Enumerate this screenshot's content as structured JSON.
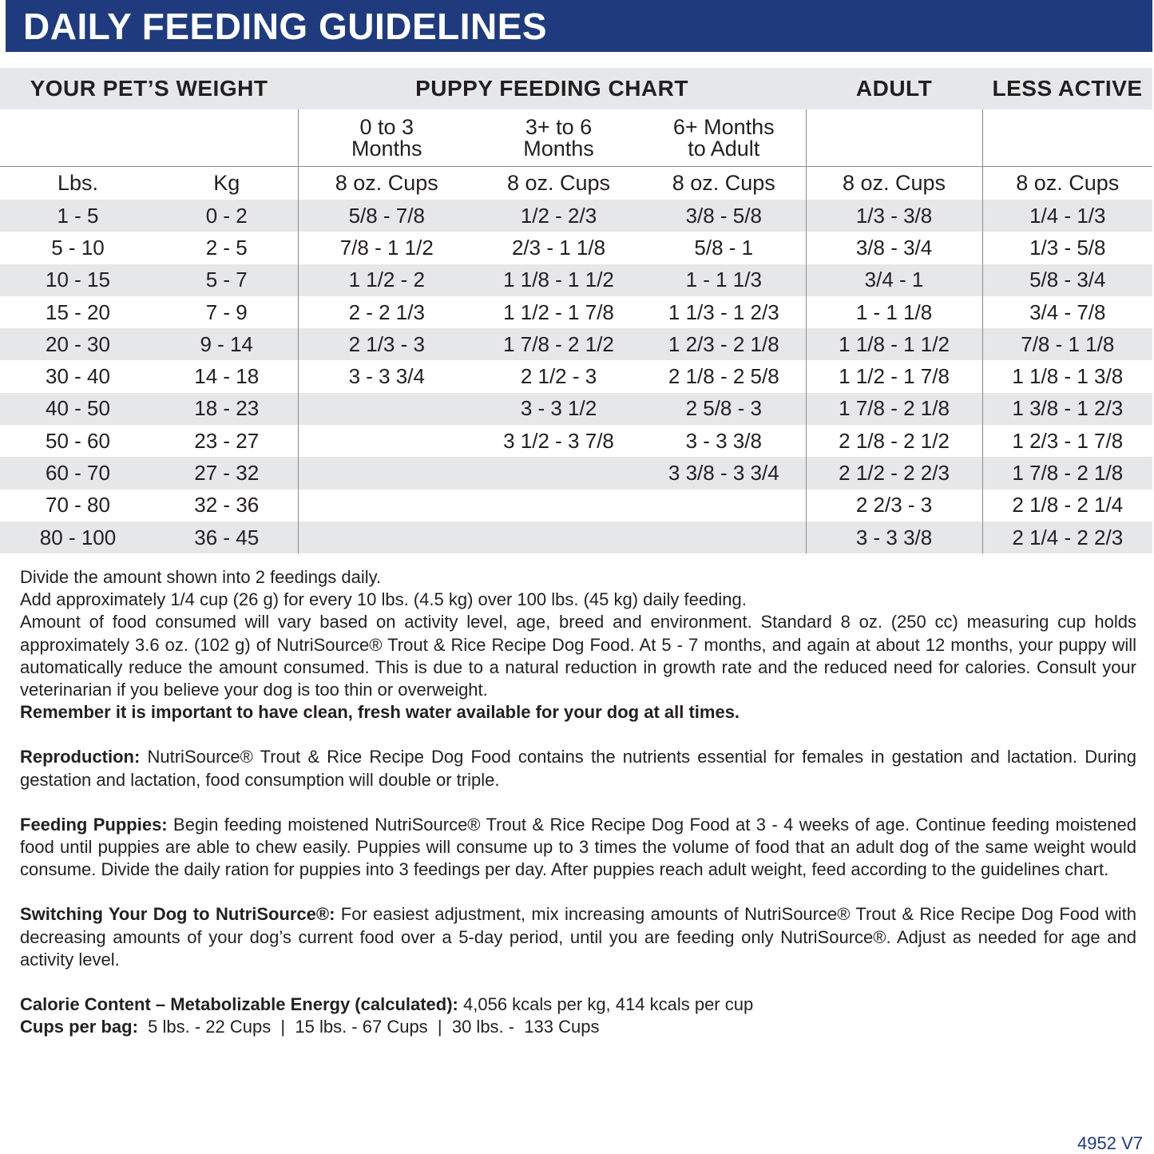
{
  "title": "DAILY FEEDING GUIDELINES",
  "table": {
    "group_headers": [
      "YOUR PET’S WEIGHT",
      "PUPPY FEEDING CHART",
      "ADULT",
      "LESS ACTIVE"
    ],
    "age_headers": [
      "0 to 3 Months",
      "3+ to 6 Months",
      "6+ Months to Adult"
    ],
    "age_header_lines": [
      [
        "0 to 3",
        "Months"
      ],
      [
        "3+ to 6",
        "Months"
      ],
      [
        "6+ Months",
        "to Adult"
      ]
    ],
    "unit_headers": [
      "Lbs.",
      "Kg",
      "8 oz. Cups",
      "8 oz. Cups",
      "8 oz. Cups",
      "8 oz. Cups",
      "8 oz. Cups"
    ],
    "rows": [
      [
        "1 - 5",
        "0 - 2",
        "5/8 - 7/8",
        "1/2 - 2/3",
        "3/8 - 5/8",
        "1/3 - 3/8",
        "1/4 - 1/3"
      ],
      [
        "5 - 10",
        "2 - 5",
        "7/8 - 1 1/2",
        "2/3 - 1 1/8",
        "5/8 - 1",
        "3/8 - 3/4",
        "1/3 - 5/8"
      ],
      [
        "10 - 15",
        "5 - 7",
        "1 1/2 - 2",
        "1 1/8 - 1 1/2",
        "1 - 1 1/3",
        "3/4 - 1",
        "5/8 - 3/4"
      ],
      [
        "15 - 20",
        "7 - 9",
        "2 - 2 1/3",
        "1 1/2 - 1 7/8",
        "1 1/3 - 1 2/3",
        "1 - 1 1/8",
        "3/4 - 7/8"
      ],
      [
        "20 - 30",
        "9 - 14",
        "2 1/3 - 3",
        "1 7/8 - 2 1/2",
        "1 2/3 - 2 1/8",
        "1 1/8 - 1 1/2",
        "7/8 - 1 1/8"
      ],
      [
        "30 - 40",
        "14 - 18",
        "3 - 3 3/4",
        "2 1/2 - 3",
        "2 1/8 - 2 5/8",
        "1 1/2 - 1 7/8",
        "1 1/8 - 1 3/8"
      ],
      [
        "40 - 50",
        "18 - 23",
        "",
        "3 - 3 1/2",
        "2 5/8 - 3",
        "1 7/8 - 2 1/8",
        "1 3/8 - 1 2/3"
      ],
      [
        "50 - 60",
        "23 - 27",
        "",
        "3 1/2 - 3 7/8",
        "3 - 3 3/8",
        "2 1/8 - 2 1/2",
        "1 2/3 - 1 7/8"
      ],
      [
        "60 - 70",
        "27 - 32",
        "",
        "",
        "3 3/8 - 3 3/4",
        "2 1/2 - 2 2/3",
        "1 7/8 - 2 1/8"
      ],
      [
        "70 - 80",
        "32 - 36",
        "",
        "",
        "",
        "2 2/3 - 3",
        "2 1/8 - 2 1/4"
      ],
      [
        "80 - 100",
        "36 - 45",
        "",
        "",
        "",
        "3 - 3 3/8",
        "2 1/4 - 2 2/3"
      ]
    ]
  },
  "notes": {
    "line1": "Divide the amount shown into 2 feedings daily.",
    "line2": "Add approximately 1/4 cup (26 g) for every 10 lbs. (4.5 kg) over 100 lbs. (45 kg) daily feeding.",
    "line3": "Amount of food consumed will vary based on activity level, age, breed and environment. Standard 8 oz. (250 cc) measuring cup holds approximately 3.6 oz. (102 g)  of NutriSource® Trout & Rice Recipe Dog Food. At 5 - 7 months, and again at about 12 months, your puppy will automatically reduce the amount consumed. This is due to a natural reduction in growth rate and the reduced need for calories. Consult your veterinarian if you believe your dog is too thin or overweight.",
    "water": "Remember it is important to have clean, fresh water available for your dog at all times.",
    "reproduction_label": "Reproduction:",
    "reproduction": " NutriSource® Trout & Rice Recipe Dog Food contains the nutrients essential for females in gestation and lactation. During gestation and lactation, food consumption will double or triple.",
    "puppies_label": "Feeding Puppies:",
    "puppies": " Begin feeding moistened NutriSource® Trout & Rice Recipe Dog Food at 3 - 4 weeks of age. Continue feeding moistened food until puppies are able to chew easily. Puppies will consume up to 3 times the volume of food that an adult dog of the same weight would consume. Divide the daily ration for puppies into 3 feedings per day. After puppies reach adult weight, feed according to the guidelines chart.",
    "switching_label": "Switching Your Dog to NutriSource®:",
    "switching": " For easiest adjustment, mix increasing amounts of NutriSource® Trout & Rice Recipe Dog Food with decreasing amounts of your dog’s current food over a 5-day period, until you are feeding only NutriSource®. Adjust as needed for age and activity level.",
    "calorie_label": "Calorie Content – Metabolizable Energy (calculated):",
    "calorie": " 4,056 kcals per kg, 414 kcals per cup",
    "cups_label": "Cups per bag:",
    "cups": "  5 lbs. - 22 Cups  |  15 lbs. - 67 Cups  |  30 lbs. -  133 Cups"
  },
  "footer_code": "4952 V7"
}
